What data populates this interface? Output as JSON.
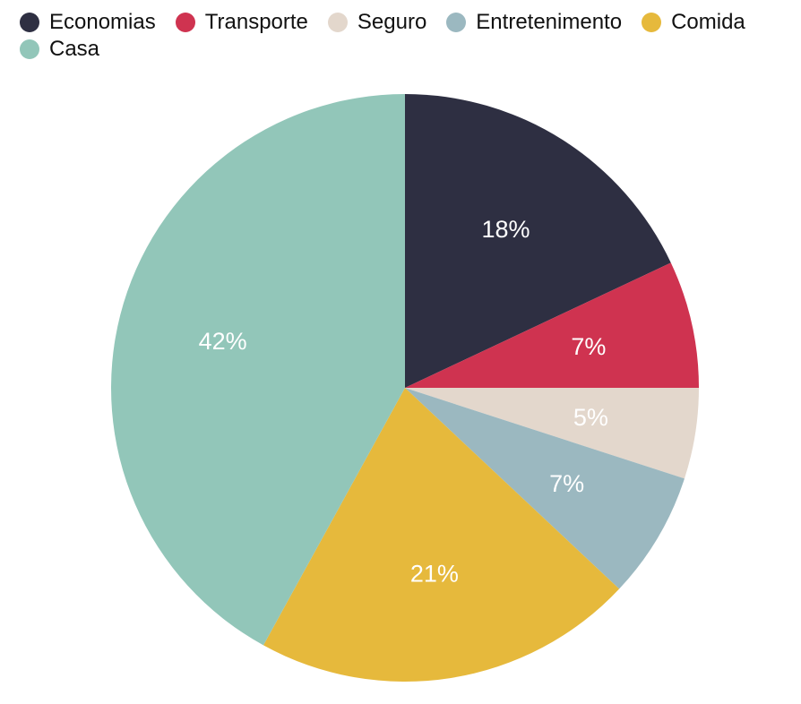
{
  "chart_data": {
    "type": "pie",
    "categories": [
      "Economias",
      "Transporte",
      "Seguro",
      "Entretenimento",
      "Comida",
      "Casa"
    ],
    "values": [
      18,
      7,
      5,
      7,
      21,
      42
    ],
    "value_labels": [
      "18%",
      "7%",
      "5%",
      "7%",
      "21%",
      "42%"
    ],
    "colors": [
      "#2e2f42",
      "#cf3350",
      "#e3d7cc",
      "#9bb8c0",
      "#e6b93c",
      "#92c6b9"
    ],
    "legend_position": "top-left",
    "start_angle_deg": 0,
    "direction": "clockwise"
  }
}
